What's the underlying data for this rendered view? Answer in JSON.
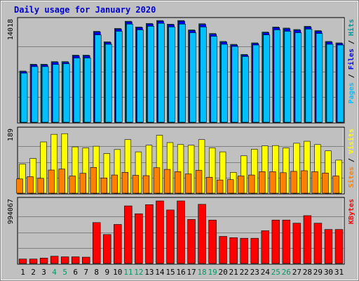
{
  "title": "Daily usage for January 2020",
  "colors": {
    "background": "#c0c0c0",
    "panel": "#c0c0c0",
    "title": "#0000cc",
    "hits": "#009999",
    "files": "#0000ff",
    "pages": "#00c0ff",
    "visits": "#ffff00",
    "sites": "#ff8000",
    "kbytes": "#ff0000",
    "weekend_label": "#009966",
    "weekday_label": "#000000"
  },
  "chart_data": [
    {
      "type": "bar",
      "panel": "top",
      "title": "Daily usage for January 2020",
      "ylabel_parts": [
        {
          "text": "Pages",
          "color_key": "pages"
        },
        {
          "text": " / ",
          "color_key": "weekday_label"
        },
        {
          "text": "Files",
          "color_key": "files"
        },
        {
          "text": " / ",
          "color_key": "weekday_label"
        },
        {
          "text": "Hits",
          "color_key": "hits"
        }
      ],
      "ymax_label": "14018",
      "ylim": [
        0,
        14018
      ],
      "categories": [
        "1",
        "2",
        "3",
        "4",
        "5",
        "6",
        "7",
        "8",
        "9",
        "10",
        "11",
        "12",
        "13",
        "14",
        "15",
        "16",
        "17",
        "18",
        "19",
        "20",
        "21",
        "22",
        "23",
        "24",
        "25",
        "26",
        "27",
        "28",
        "29",
        "30",
        "31"
      ],
      "series": [
        {
          "name": "Hits",
          "color_key": "hits",
          "values": [
            7100,
            8050,
            8050,
            8400,
            8400,
            9300,
            9300,
            12600,
            11150,
            13000,
            14000,
            13200,
            13700,
            14100,
            13600,
            14100,
            12800,
            13650,
            12300,
            11200,
            10800,
            9400,
            11000,
            12500,
            13200,
            13050,
            12850,
            13300,
            12700,
            11200,
            11000
          ]
        },
        {
          "name": "Files",
          "color_key": "files",
          "values": [
            7100,
            8050,
            8050,
            8400,
            8400,
            9300,
            9300,
            12600,
            11150,
            13000,
            14000,
            13200,
            13700,
            14100,
            13600,
            14100,
            12800,
            13650,
            12300,
            11200,
            10800,
            9400,
            11000,
            12500,
            13200,
            13050,
            12850,
            13300,
            12700,
            11200,
            11000
          ]
        },
        {
          "name": "Pages",
          "color_key": "pages",
          "values": [
            7000,
            7900,
            7900,
            8200,
            8300,
            9100,
            9100,
            12300,
            11000,
            12800,
            13800,
            13000,
            13500,
            13900,
            13400,
            13800,
            12600,
            13400,
            12100,
            11000,
            10700,
            9300,
            10900,
            12300,
            13000,
            12800,
            12600,
            13100,
            12500,
            11000,
            10900
          ]
        }
      ]
    },
    {
      "type": "bar",
      "panel": "middle",
      "ylabel_parts": [
        {
          "text": "Sites",
          "color_key": "sites"
        },
        {
          "text": " / ",
          "color_key": "weekday_label"
        },
        {
          "text": "Visits",
          "color_key": "visits"
        }
      ],
      "ymax_label": "189",
      "ylim": [
        0,
        189
      ],
      "categories": [
        "1",
        "2",
        "3",
        "4",
        "5",
        "6",
        "7",
        "8",
        "9",
        "10",
        "11",
        "12",
        "13",
        "14",
        "15",
        "16",
        "17",
        "18",
        "19",
        "20",
        "21",
        "22",
        "23",
        "24",
        "25",
        "26",
        "27",
        "28",
        "29",
        "30",
        "31"
      ],
      "series": [
        {
          "name": "Visits",
          "color_key": "visits",
          "values": [
            88,
            105,
            155,
            178,
            180,
            140,
            137,
            142,
            120,
            132,
            162,
            125,
            145,
            175,
            153,
            147,
            145,
            162,
            137,
            125,
            63,
            113,
            133,
            143,
            144,
            137,
            151,
            157,
            147,
            128,
            100
          ]
        },
        {
          "name": "Sites",
          "color_key": "sites",
          "values": [
            43,
            50,
            45,
            70,
            73,
            52,
            60,
            78,
            46,
            55,
            63,
            54,
            53,
            77,
            72,
            65,
            58,
            69,
            48,
            40,
            41,
            52,
            55,
            65,
            65,
            62,
            66,
            68,
            65,
            61,
            52
          ]
        }
      ]
    },
    {
      "type": "bar",
      "panel": "bottom",
      "ylabel_parts": [
        {
          "text": "KBytes",
          "color_key": "kbytes"
        }
      ],
      "ymax_label": "994067",
      "ylim": [
        0,
        994067
      ],
      "categories": [
        "1",
        "2",
        "3",
        "4",
        "5",
        "6",
        "7",
        "8",
        "9",
        "10",
        "11",
        "12",
        "13",
        "14",
        "15",
        "16",
        "17",
        "18",
        "19",
        "20",
        "21",
        "22",
        "23",
        "24",
        "25",
        "26",
        "27",
        "28",
        "29",
        "30",
        "31"
      ],
      "series": [
        {
          "name": "KBytes",
          "color_key": "kbytes",
          "values": [
            70000,
            70000,
            85000,
            115000,
            105000,
            105000,
            100000,
            650000,
            460000,
            620000,
            915000,
            790000,
            935000,
            994067,
            850000,
            994067,
            700000,
            940000,
            690000,
            430000,
            410000,
            400000,
            400000,
            520000,
            690000,
            690000,
            640000,
            760000,
            640000,
            540000,
            540000
          ]
        }
      ]
    }
  ],
  "weekend_days": [
    "4",
    "5",
    "11",
    "12",
    "18",
    "19",
    "25",
    "26"
  ]
}
